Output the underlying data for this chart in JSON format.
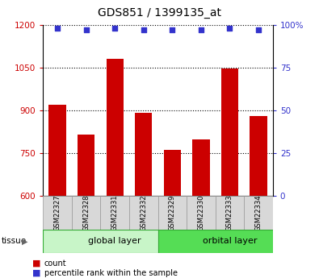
{
  "title": "GDS851 / 1399135_at",
  "samples": [
    "GSM22327",
    "GSM22328",
    "GSM22331",
    "GSM22332",
    "GSM22329",
    "GSM22330",
    "GSM22333",
    "GSM22334"
  ],
  "count_values": [
    920,
    815,
    1080,
    893,
    763,
    800,
    1048,
    880
  ],
  "percentile_values": [
    98,
    97,
    98,
    97,
    97,
    97,
    98,
    97
  ],
  "groups": [
    {
      "label": "global layer",
      "start": 0,
      "end": 4,
      "color": "#c8f5c8"
    },
    {
      "label": "orbital layer",
      "start": 4,
      "end": 8,
      "color": "#55dd55"
    }
  ],
  "ylim_left": [
    600,
    1200
  ],
  "ylim_right": [
    0,
    100
  ],
  "yticks_left": [
    600,
    750,
    900,
    1050,
    1200
  ],
  "yticks_right": [
    0,
    25,
    50,
    75,
    100
  ],
  "bar_color": "#cc0000",
  "dot_color": "#3333cc",
  "bar_width": 0.6,
  "bg_color": "#ffffff",
  "left_tick_color": "#cc0000",
  "right_tick_color": "#3333cc",
  "tissue_label": "tissue",
  "legend_count_label": "count",
  "legend_pct_label": "percentile rank within the sample",
  "gridline_color": "#555555"
}
